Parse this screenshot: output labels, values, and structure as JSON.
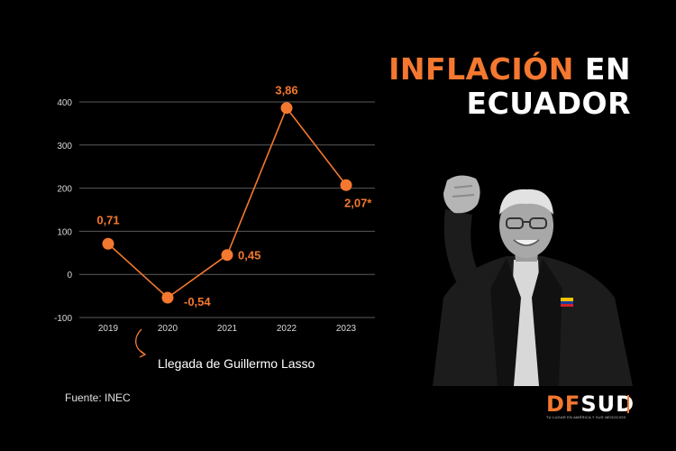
{
  "title": {
    "accent": "INFLACIÓN",
    "line1_rest": "EN",
    "line2": "ECUADOR"
  },
  "annotation": "Llegada de Guillermo Lasso",
  "source": "Fuente: INEC",
  "logo": {
    "df": "DF",
    "sud": "SUD",
    "tagline": "TU LUGAR EN AMÉRICA Y SUS NEGOCIOS"
  },
  "colors": {
    "accent": "#f4782f",
    "background": "#000000",
    "grid": "#5a5a5a"
  },
  "chart_data": {
    "type": "line",
    "x": [
      "2019",
      "2020",
      "2021",
      "2022",
      "2023"
    ],
    "series": [
      {
        "values": [
          71,
          -54,
          45,
          386,
          207
        ],
        "labels": [
          "0,71",
          "-0,54",
          "0,45",
          "3,86",
          "2,07*"
        ]
      }
    ],
    "yticks": [
      400,
      300,
      200,
      100,
      0,
      -100
    ],
    "yticklabels": [
      "400",
      "300",
      "200",
      "100",
      "0",
      "-100"
    ],
    "ylim": [
      -100,
      400
    ],
    "grid": true,
    "legend": "none",
    "annotation_target": "2020"
  }
}
